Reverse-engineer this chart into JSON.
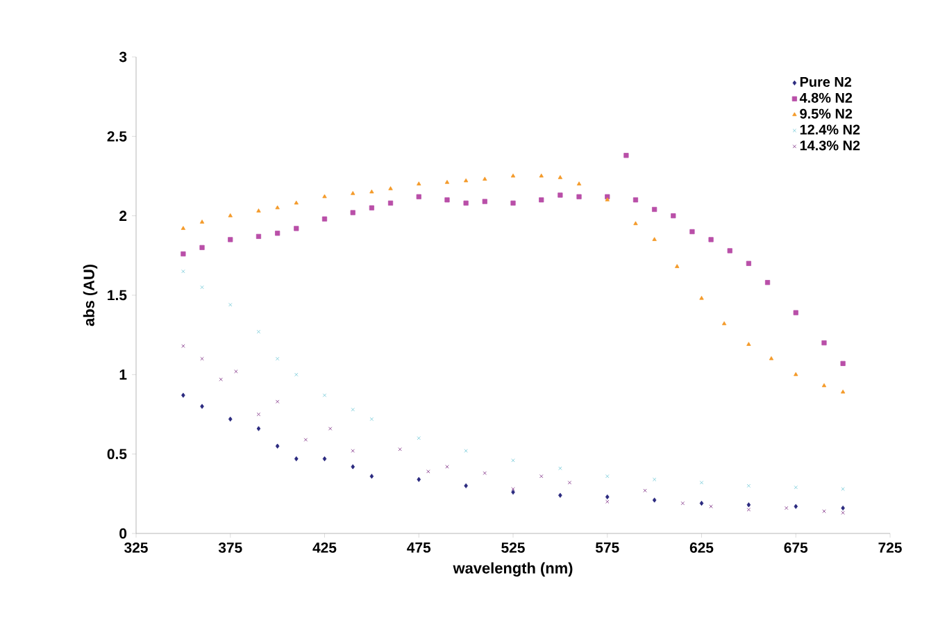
{
  "chart_data": {
    "type": "scatter",
    "xlabel": "wavelength (nm)",
    "ylabel": "abs (AU)",
    "xlim": [
      325,
      725
    ],
    "ylim": [
      0,
      3
    ],
    "xticks": [
      325,
      375,
      425,
      475,
      525,
      575,
      625,
      675,
      725
    ],
    "yticks": [
      0,
      0.5,
      1,
      1.5,
      2,
      2.5,
      3
    ],
    "grid": false,
    "legend": "top right",
    "series": [
      {
        "name": "Pure N2",
        "color": "#2b2a7f",
        "marker": "diamond",
        "x": [
          350,
          360,
          375,
          390,
          400,
          410,
          425,
          440,
          450,
          475,
          500,
          525,
          550,
          575,
          600,
          625,
          650,
          675,
          700
        ],
        "values": [
          0.87,
          0.8,
          0.72,
          0.66,
          0.55,
          0.47,
          0.47,
          0.42,
          0.36,
          0.34,
          0.3,
          0.26,
          0.24,
          0.23,
          0.21,
          0.19,
          0.18,
          0.17,
          0.16
        ]
      },
      {
        "name": "4.8% N2",
        "color": "#b94fa8",
        "marker": "square",
        "x": [
          350,
          360,
          375,
          390,
          400,
          410,
          425,
          440,
          450,
          460,
          475,
          490,
          500,
          510,
          525,
          540,
          550,
          560,
          575,
          585,
          590,
          600,
          610,
          620,
          630,
          640,
          650,
          660,
          675,
          690,
          700
        ],
        "values": [
          1.76,
          1.8,
          1.85,
          1.87,
          1.89,
          1.92,
          1.98,
          2.02,
          2.05,
          2.08,
          2.12,
          2.1,
          2.08,
          2.09,
          2.08,
          2.1,
          2.13,
          2.12,
          2.12,
          2.38,
          2.1,
          2.04,
          2.0,
          1.9,
          1.85,
          1.78,
          1.7,
          1.58,
          1.39,
          1.2,
          1.07
        ]
      },
      {
        "name": "9.5% N2",
        "color": "#f49a2a",
        "marker": "triangle",
        "x": [
          350,
          360,
          375,
          390,
          400,
          410,
          425,
          440,
          450,
          460,
          475,
          490,
          500,
          510,
          525,
          540,
          550,
          560,
          575,
          590,
          600,
          612,
          625,
          637,
          650,
          662,
          675,
          690,
          700
        ],
        "values": [
          1.92,
          1.96,
          2.0,
          2.03,
          2.05,
          2.08,
          2.12,
          2.14,
          2.15,
          2.17,
          2.2,
          2.21,
          2.22,
          2.23,
          2.25,
          2.25,
          2.24,
          2.2,
          2.1,
          1.95,
          1.85,
          1.68,
          1.48,
          1.32,
          1.19,
          1.1,
          1.0,
          0.93,
          0.89
        ]
      },
      {
        "name": "12.4% N2",
        "color": "#6cc6d6",
        "marker": "cross",
        "x": [
          350,
          360,
          375,
          390,
          400,
          410,
          425,
          440,
          450,
          475,
          500,
          525,
          550,
          575,
          600,
          625,
          650,
          675,
          700
        ],
        "values": [
          1.65,
          1.55,
          1.44,
          1.27,
          1.1,
          1.0,
          0.87,
          0.78,
          0.72,
          0.6,
          0.52,
          0.46,
          0.41,
          0.36,
          0.34,
          0.32,
          0.3,
          0.29,
          0.28
        ]
      },
      {
        "name": "14.3% N2",
        "color": "#7b2a82",
        "marker": "cross",
        "x": [
          350,
          360,
          370,
          378,
          390,
          400,
          415,
          428,
          440,
          465,
          480,
          490,
          510,
          525,
          540,
          555,
          575,
          595,
          615,
          630,
          650,
          670,
          690,
          700
        ],
        "values": [
          1.18,
          1.1,
          0.97,
          1.02,
          0.75,
          0.83,
          0.59,
          0.66,
          0.52,
          0.53,
          0.39,
          0.42,
          0.38,
          0.28,
          0.36,
          0.32,
          0.2,
          0.27,
          0.19,
          0.17,
          0.15,
          0.16,
          0.14,
          0.13
        ]
      }
    ]
  }
}
